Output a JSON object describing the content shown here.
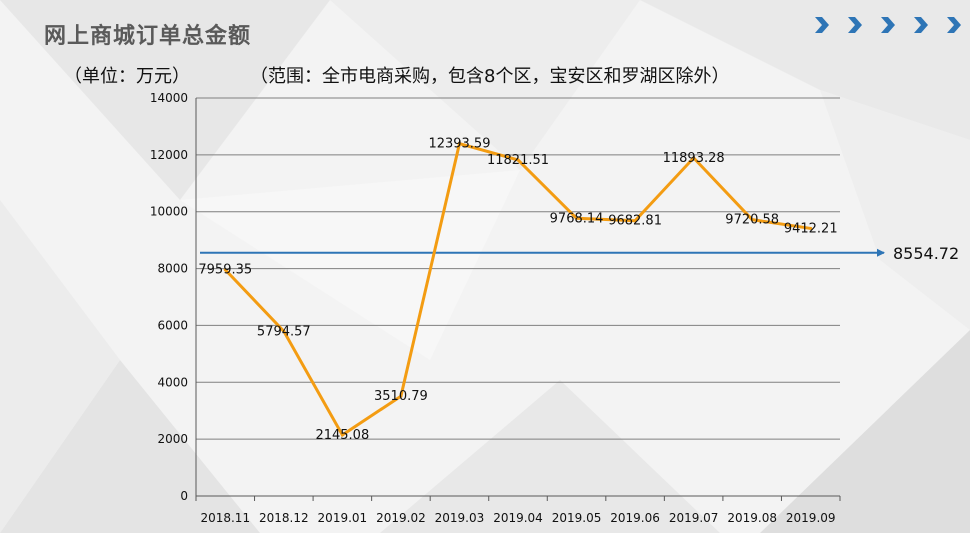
{
  "title": "网上商城订单总金额",
  "subtitle_unit": "（单位：万元）",
  "subtitle_scope": "（范围：全市电商采购，包含8个区，宝安区和罗湖区除外）",
  "colors": {
    "line": "#f39c12",
    "reference": "#2e75b6",
    "grid": "#7f7f7f",
    "chevron": "#2e75b6"
  },
  "icons": [
    "chevron-right-icon",
    "chevron-right-icon",
    "chevron-right-icon",
    "chevron-right-icon",
    "chevron-right-icon"
  ],
  "chart_data": {
    "type": "line",
    "categories": [
      "2018.11",
      "2018.12",
      "2019.01",
      "2019.02",
      "2019.03",
      "2019.04",
      "2019.05",
      "2019.06",
      "2019.07",
      "2019.08",
      "2019.09"
    ],
    "values": [
      7959.35,
      5794.57,
      2145.08,
      3510.79,
      12393.59,
      11821.51,
      9768.14,
      9682.81,
      11893.28,
      9720.58,
      9412.21
    ],
    "data_labels": [
      "7959.35",
      "5794.57",
      "2145.08",
      "3510.79",
      "12393.59",
      "11821.51",
      "9768.14",
      "9682.81",
      "11893.28",
      "9720.58",
      "9412.21"
    ],
    "reference_line": {
      "value": 8554.72,
      "label": "8554.72"
    },
    "ylim": [
      0,
      14000
    ],
    "y_ticks": [
      0,
      2000,
      4000,
      6000,
      8000,
      10000,
      12000,
      14000
    ],
    "grid": true,
    "legend": "none"
  }
}
